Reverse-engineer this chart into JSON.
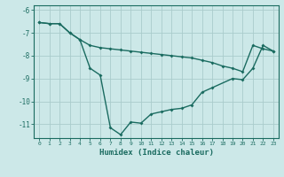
{
  "xlabel": "Humidex (Indice chaleur)",
  "background_color": "#cce8e8",
  "grid_color": "#aacccc",
  "line_color": "#1a6b60",
  "xlim": [
    -0.5,
    23.5
  ],
  "ylim": [
    -11.6,
    -5.8
  ],
  "yticks": [
    -6,
    -7,
    -8,
    -9,
    -10,
    -11
  ],
  "xticks": [
    0,
    1,
    2,
    3,
    4,
    5,
    6,
    7,
    8,
    9,
    10,
    11,
    12,
    13,
    14,
    15,
    16,
    17,
    18,
    19,
    20,
    21,
    22,
    23
  ],
  "curve1_x": [
    0,
    1,
    2,
    3,
    4,
    5,
    6,
    7,
    8,
    9,
    10,
    11,
    12,
    13,
    14,
    15,
    16,
    17,
    18,
    19,
    20,
    21,
    22,
    23
  ],
  "curve1_y": [
    -6.55,
    -6.6,
    -6.6,
    -7.0,
    -7.3,
    -7.55,
    -7.65,
    -7.7,
    -7.75,
    -7.8,
    -7.85,
    -7.9,
    -7.95,
    -8.0,
    -8.05,
    -8.1,
    -8.2,
    -8.3,
    -8.45,
    -8.55,
    -8.7,
    -7.55,
    -7.7,
    -7.8
  ],
  "curve2_x": [
    0,
    1,
    2,
    3,
    4,
    5,
    6,
    7,
    8,
    9,
    10,
    11,
    12,
    13,
    14,
    15,
    16,
    17,
    19,
    20,
    21,
    22,
    23
  ],
  "curve2_y": [
    -6.55,
    -6.6,
    -6.6,
    -7.0,
    -7.3,
    -8.55,
    -8.85,
    -11.15,
    -11.45,
    -10.9,
    -10.95,
    -10.55,
    -10.45,
    -10.35,
    -10.3,
    -10.15,
    -9.6,
    -9.4,
    -9.0,
    -9.05,
    -8.55,
    -7.55,
    -7.8
  ]
}
